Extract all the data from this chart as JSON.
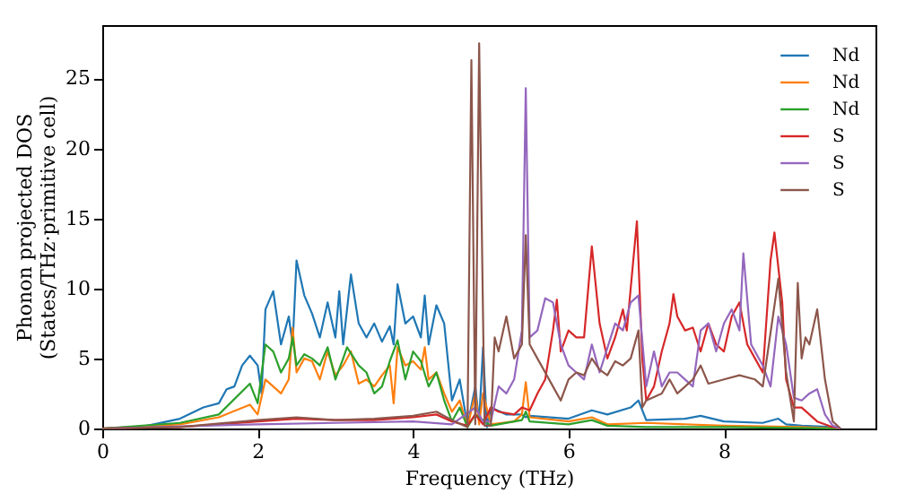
{
  "chart_data": {
    "type": "line",
    "xlabel": "Frequency (THz)",
    "ylabel": "Phonon projected DOS\n(States/THz·primitive cell)",
    "xlim": [
      0,
      9.95
    ],
    "ylim": [
      0,
      28.8
    ],
    "xticks": [
      0,
      2,
      4,
      6,
      8
    ],
    "yticks": [
      0,
      5,
      10,
      15,
      20,
      25
    ],
    "grid": false,
    "legend": "top right",
    "line_style": "solid",
    "marker": "none",
    "series": [
      {
        "name": "Nd",
        "color": "#1f77b4",
        "x": [
          0,
          0.5,
          1.0,
          1.3,
          1.5,
          1.6,
          1.7,
          1.8,
          1.9,
          2.0,
          2.05,
          2.1,
          2.2,
          2.3,
          2.4,
          2.45,
          2.5,
          2.6,
          2.7,
          2.8,
          2.9,
          3.0,
          3.05,
          3.1,
          3.2,
          3.3,
          3.4,
          3.5,
          3.6,
          3.7,
          3.75,
          3.8,
          3.9,
          4.0,
          4.1,
          4.15,
          4.2,
          4.3,
          4.4,
          4.5,
          4.6,
          4.7,
          4.8,
          4.85,
          4.9,
          4.95,
          5.0,
          5.2,
          5.4,
          5.45,
          5.5,
          6.0,
          6.3,
          6.5,
          6.8,
          6.9,
          7.0,
          7.5,
          7.7,
          8.0,
          8.5,
          8.7,
          8.8,
          9.0,
          9.4,
          9.5
        ],
        "values": [
          0,
          0.1,
          0.7,
          1.5,
          1.8,
          2.8,
          3.0,
          4.5,
          5.2,
          4.5,
          2.5,
          8.5,
          9.8,
          6.0,
          8.0,
          6.0,
          12.0,
          9.5,
          8.2,
          6.5,
          9.0,
          6.5,
          9.8,
          6.0,
          11.0,
          7.5,
          6.5,
          7.5,
          6.2,
          7.3,
          6.0,
          10.3,
          7.5,
          8.0,
          6.5,
          9.5,
          6.0,
          8.8,
          7.5,
          2.0,
          3.5,
          0.2,
          3.0,
          0.5,
          5.8,
          0.1,
          1.5,
          1.0,
          1.0,
          0.8,
          0.9,
          0.7,
          1.3,
          1.0,
          1.5,
          2.0,
          0.6,
          0.7,
          0.9,
          0.5,
          0.4,
          0.7,
          0.3,
          0.2,
          0.1,
          0
        ]
      },
      {
        "name": "Nd",
        "color": "#ff7f0e",
        "x": [
          0,
          1,
          1.5,
          1.9,
          2.0,
          2.1,
          2.2,
          2.3,
          2.4,
          2.45,
          2.5,
          2.6,
          2.7,
          2.8,
          2.9,
          3.0,
          3.1,
          3.2,
          3.3,
          3.4,
          3.5,
          3.6,
          3.7,
          3.75,
          3.8,
          3.9,
          4.0,
          4.1,
          4.15,
          4.2,
          4.3,
          4.4,
          4.5,
          4.6,
          4.7,
          4.8,
          4.85,
          4.9,
          5.0,
          5.3,
          5.4,
          5.45,
          5.5,
          6.0,
          6.3,
          6.5,
          7.0,
          8.0,
          9.0,
          9.5
        ],
        "values": [
          0,
          0.3,
          0.8,
          1.7,
          1.0,
          3.5,
          3.0,
          2.5,
          3.5,
          7.2,
          4.0,
          5.0,
          4.8,
          3.5,
          5.5,
          3.8,
          4.5,
          5.5,
          3.2,
          3.5,
          3.0,
          3.8,
          4.5,
          1.8,
          5.8,
          4.5,
          4.8,
          4.2,
          5.8,
          3.5,
          4.0,
          2.5,
          1.2,
          2.0,
          0.1,
          2.5,
          0.3,
          2.5,
          0.3,
          0.5,
          1.0,
          3.3,
          0.8,
          0.5,
          0.8,
          0.3,
          0.4,
          0.2,
          0.1,
          0
        ]
      },
      {
        "name": "Nd",
        "color": "#2ca02c",
        "x": [
          0,
          1,
          1.5,
          1.9,
          2.0,
          2.1,
          2.2,
          2.3,
          2.4,
          2.45,
          2.5,
          2.6,
          2.7,
          2.8,
          2.9,
          3.0,
          3.1,
          3.15,
          3.3,
          3.4,
          3.5,
          3.6,
          3.7,
          3.8,
          3.9,
          4.0,
          4.1,
          4.2,
          4.3,
          4.4,
          4.5,
          4.6,
          4.7,
          4.8,
          5.0,
          5.4,
          5.45,
          5.5,
          6.0,
          6.3,
          6.5,
          7.0,
          8.0,
          9.5
        ],
        "values": [
          0,
          0.4,
          1.0,
          3.2,
          1.8,
          6.0,
          5.5,
          4.0,
          5.0,
          6.5,
          4.5,
          5.3,
          5.0,
          4.5,
          5.8,
          3.5,
          5.0,
          5.8,
          4.5,
          4.0,
          2.5,
          3.0,
          4.8,
          6.3,
          3.5,
          5.5,
          4.8,
          3.0,
          4.0,
          2.0,
          0.5,
          1.5,
          0.1,
          1.0,
          0.2,
          0.6,
          1.2,
          0.5,
          0.3,
          0.6,
          0.2,
          0.1,
          0.1,
          0
        ]
      },
      {
        "name": "S",
        "color": "#d62728",
        "x": [
          0,
          1,
          1.5,
          2.0,
          2.5,
          3,
          3.5,
          4.0,
          4.3,
          4.5,
          4.7,
          4.8,
          4.9,
          5.0,
          5.1,
          5.3,
          5.4,
          5.5,
          5.6,
          5.7,
          5.8,
          5.85,
          5.9,
          6.0,
          6.1,
          6.2,
          6.3,
          6.4,
          6.5,
          6.6,
          6.7,
          6.75,
          6.8,
          6.88,
          6.95,
          7.0,
          7.1,
          7.2,
          7.3,
          7.35,
          7.4,
          7.5,
          7.6,
          7.7,
          7.8,
          7.9,
          8.0,
          8.1,
          8.2,
          8.3,
          8.4,
          8.5,
          8.6,
          8.65,
          8.75,
          8.8,
          8.9,
          9.0,
          9.2,
          9.4,
          9.5
        ],
        "values": [
          0,
          0.1,
          0.3,
          0.5,
          0.7,
          0.6,
          0.6,
          0.8,
          1.0,
          0.5,
          0.2,
          1.0,
          0.3,
          1.5,
          1.2,
          1.0,
          1.5,
          1.3,
          2.5,
          3.5,
          7.0,
          9.2,
          5.5,
          7.0,
          6.5,
          6.5,
          13.0,
          7.5,
          5.0,
          6.5,
          8.5,
          7.0,
          10.0,
          14.8,
          5.0,
          2.0,
          3.0,
          5.5,
          7.5,
          9.6,
          8.0,
          7.0,
          7.2,
          5.5,
          7.5,
          6.0,
          5.5,
          8.0,
          9.0,
          6.0,
          5.0,
          4.0,
          12.0,
          14.0,
          9.0,
          3.5,
          1.5,
          1.5,
          0.5,
          0.1,
          0
        ]
      },
      {
        "name": "S",
        "color": "#9467bd",
        "x": [
          0,
          2,
          3,
          4,
          4.5,
          4.8,
          4.9,
          5.0,
          5.1,
          5.2,
          5.3,
          5.4,
          5.45,
          5.5,
          5.6,
          5.7,
          5.8,
          5.9,
          6.0,
          6.1,
          6.2,
          6.3,
          6.4,
          6.6,
          6.7,
          6.8,
          6.9,
          7.0,
          7.1,
          7.2,
          7.3,
          7.4,
          7.5,
          7.6,
          7.7,
          7.8,
          7.9,
          8.0,
          8.1,
          8.2,
          8.25,
          8.35,
          8.5,
          8.6,
          8.7,
          8.8,
          8.9,
          9.0,
          9.1,
          9.2,
          9.3,
          9.4,
          9.5
        ],
        "values": [
          0,
          0.3,
          0.4,
          0.5,
          0.3,
          1.5,
          0.5,
          0.5,
          3.0,
          2.5,
          3.5,
          7.0,
          24.3,
          6.5,
          7.0,
          9.3,
          9.0,
          6.0,
          4.5,
          4.0,
          3.5,
          6.0,
          4.0,
          7.5,
          7.0,
          9.0,
          9.5,
          3.0,
          5.5,
          3.0,
          4.0,
          4.0,
          3.5,
          3.0,
          7.0,
          7.5,
          5.5,
          7.5,
          8.5,
          7.0,
          12.5,
          6.0,
          4.5,
          3.0,
          8.0,
          6.0,
          2.2,
          2.0,
          2.5,
          2.8,
          1.0,
          0.2,
          0
        ]
      },
      {
        "name": "S",
        "color": "#8c564b",
        "x": [
          0,
          1,
          2,
          2.5,
          3,
          3.5,
          4,
          4.3,
          4.5,
          4.7,
          4.75,
          4.8,
          4.85,
          4.92,
          5.0,
          5.05,
          5.1,
          5.2,
          5.3,
          5.4,
          5.45,
          5.5,
          5.6,
          5.7,
          5.8,
          5.9,
          6.0,
          6.1,
          6.2,
          6.3,
          6.4,
          6.5,
          6.6,
          6.7,
          6.8,
          6.9,
          6.95,
          7.0,
          7.2,
          7.3,
          7.4,
          7.6,
          7.7,
          7.8,
          8.0,
          8.2,
          8.4,
          8.5,
          8.7,
          8.8,
          8.9,
          8.95,
          9.0,
          9.05,
          9.1,
          9.2,
          9.3,
          9.4,
          9.5
        ],
        "values": [
          0,
          0.1,
          0.6,
          0.8,
          0.6,
          0.7,
          0.9,
          1.2,
          0.6,
          0.1,
          26.3,
          0.3,
          27.5,
          0.2,
          0.2,
          6.5,
          5.5,
          8.0,
          5.0,
          6.0,
          13.8,
          6.0,
          5.0,
          4.0,
          3.0,
          2.0,
          3.5,
          4.0,
          3.8,
          5.0,
          4.2,
          3.8,
          4.8,
          4.5,
          5.0,
          7.0,
          1.5,
          2.0,
          2.5,
          3.5,
          2.5,
          3.5,
          4.5,
          3.2,
          3.5,
          3.8,
          3.5,
          3.0,
          10.7,
          4.0,
          0.5,
          10.4,
          5.0,
          6.5,
          6.0,
          8.5,
          3.5,
          0.5,
          0
        ]
      }
    ]
  }
}
